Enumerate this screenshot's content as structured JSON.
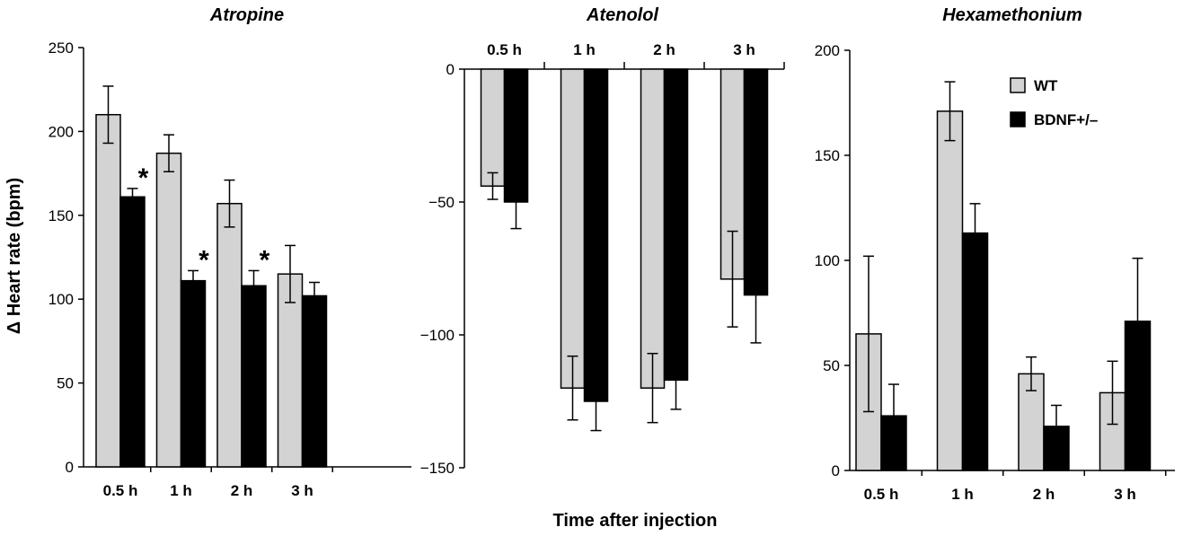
{
  "figure": {
    "ylabel": "Δ Heart rate (bpm)",
    "xlabel": "Time after injection"
  },
  "legend": [
    {
      "name": "WT",
      "color": "#d3d3d3"
    },
    {
      "name": "BDNF+/–",
      "color": "#000000"
    }
  ],
  "chart_data": [
    {
      "type": "bar",
      "title": "Atropine",
      "categories": [
        "0.5 h",
        "1 h",
        "2 h",
        "3 h"
      ],
      "ylim": [
        0,
        250
      ],
      "yticks": [
        0,
        50,
        100,
        150,
        200,
        250
      ],
      "series": [
        {
          "name": "WT",
          "color": "#d3d3d3",
          "values": [
            210,
            187,
            157,
            115
          ],
          "errors": [
            17,
            11,
            14,
            17
          ]
        },
        {
          "name": "BDNF+/–",
          "color": "#000000",
          "values": [
            161,
            111,
            108,
            102
          ],
          "errors": [
            5,
            6,
            9,
            8
          ]
        }
      ],
      "annotations": [
        {
          "category": "0.5 h",
          "series": "BDNF+/–",
          "text": "*"
        },
        {
          "category": "1 h",
          "series": "BDNF+/–",
          "text": "*"
        },
        {
          "category": "2 h",
          "series": "BDNF+/–",
          "text": "*"
        }
      ]
    },
    {
      "type": "bar",
      "title": "Atenolol",
      "categories": [
        "0.5 h",
        "1 h",
        "2 h",
        "3 h"
      ],
      "ylim": [
        -150,
        0
      ],
      "yticks": [
        0,
        -50,
        -100,
        -150
      ],
      "category_axis": "top",
      "series": [
        {
          "name": "WT",
          "color": "#d3d3d3",
          "values": [
            -44,
            -120,
            -120,
            -79
          ],
          "errors": [
            5,
            12,
            13,
            18
          ]
        },
        {
          "name": "BDNF+/–",
          "color": "#000000",
          "values": [
            -50,
            -125,
            -117,
            -85
          ],
          "errors": [
            10,
            11,
            11,
            18
          ]
        }
      ]
    },
    {
      "type": "bar",
      "title": "Hexamethonium",
      "categories": [
        "0.5 h",
        "1 h",
        "2 h",
        "3 h"
      ],
      "ylim": [
        0,
        200
      ],
      "yticks": [
        0,
        50,
        100,
        150,
        200
      ],
      "legend": "top-right",
      "series": [
        {
          "name": "WT",
          "color": "#d3d3d3",
          "values": [
            65,
            171,
            46,
            37
          ],
          "errors": [
            37,
            14,
            8,
            15
          ]
        },
        {
          "name": "BDNF+/–",
          "color": "#000000",
          "values": [
            26,
            113,
            21,
            71
          ],
          "errors": [
            15,
            14,
            10,
            30
          ]
        }
      ]
    }
  ]
}
